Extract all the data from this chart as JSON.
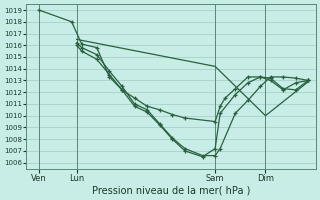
{
  "background_color": "#c8ece6",
  "grid_color": "#a0ccc4",
  "line_color": "#2a6040",
  "xlabel": "Pression niveau de la mer( hPa )",
  "ylim": [
    1005.5,
    1019.5
  ],
  "yticks": [
    1006,
    1007,
    1008,
    1009,
    1010,
    1011,
    1012,
    1013,
    1014,
    1015,
    1016,
    1017,
    1018,
    1019
  ],
  "xtick_labels": [
    "Ven",
    "Lun",
    "Sam",
    "Dim"
  ],
  "xtick_positions": [
    0.5,
    2.0,
    7.5,
    9.5
  ],
  "vline_positions": [
    0.5,
    2.0,
    7.5,
    9.5
  ],
  "xlim": [
    0.0,
    11.5
  ],
  "lines": [
    {
      "x": [
        0.5,
        1.8,
        2.2,
        2.8,
        3.3,
        3.8,
        4.3,
        4.8,
        5.3,
        5.8,
        6.3,
        7.5,
        7.7,
        7.9,
        8.3,
        8.8,
        9.3,
        9.7,
        10.2,
        10.7,
        11.2
      ],
      "y": [
        1019,
        1018,
        1016.1,
        1015.8,
        1013.3,
        1012.2,
        1011.5,
        1010.8,
        1010.5,
        1010.1,
        1009.8,
        1009.5,
        1010.8,
        1011.5,
        1012.3,
        1013.3,
        1013.3,
        1013.0,
        1012.2,
        1012.8,
        1013.0
      ],
      "has_markers": true
    },
    {
      "x": [
        2.0,
        2.2,
        2.8,
        3.3,
        3.8,
        4.3,
        4.8,
        5.3,
        5.8,
        6.3,
        7.0,
        7.5,
        7.7,
        8.3,
        8.8,
        9.3,
        9.7,
        10.2,
        10.7,
        11.2
      ],
      "y": [
        1016.2,
        1015.8,
        1015.2,
        1013.8,
        1012.5,
        1011.0,
        1010.5,
        1009.3,
        1008.1,
        1007.2,
        1006.6,
        1006.6,
        1007.2,
        1010.2,
        1011.3,
        1012.5,
        1013.3,
        1013.3,
        1013.2,
        1013.0
      ],
      "has_markers": true
    },
    {
      "x": [
        2.0,
        2.2,
        2.8,
        3.3,
        3.8,
        4.3,
        4.8,
        5.3,
        5.8,
        6.3,
        7.0,
        7.5,
        7.7,
        8.3,
        8.8,
        9.3,
        9.7,
        10.2,
        10.7,
        11.2
      ],
      "y": [
        1016.0,
        1015.5,
        1014.8,
        1013.5,
        1012.2,
        1010.8,
        1010.3,
        1009.2,
        1008.0,
        1007.0,
        1006.5,
        1007.2,
        1010.2,
        1011.8,
        1012.8,
        1013.3,
        1013.2,
        1012.3,
        1012.2,
        1013.0
      ],
      "has_markers": true
    },
    {
      "x": [
        2.0,
        7.5,
        9.5,
        11.2
      ],
      "y": [
        1016.5,
        1014.2,
        1010.0,
        1012.9
      ],
      "has_markers": false
    }
  ]
}
